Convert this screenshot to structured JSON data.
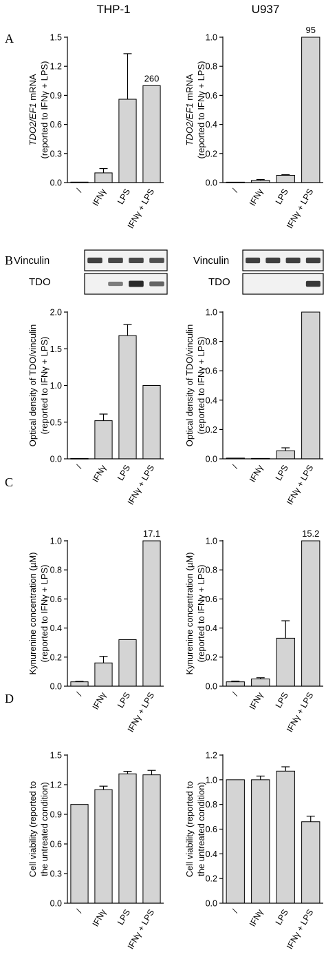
{
  "column_titles": [
    "THP-1",
    "U937"
  ],
  "panel_letters": [
    "A",
    "B",
    "C",
    "D"
  ],
  "blots": {
    "labels": [
      "Vinculin",
      "TDO"
    ],
    "thp1": {
      "vinculin_intensity": [
        0.85,
        0.8,
        0.8,
        0.75
      ],
      "tdo_intensity": [
        0.0,
        0.45,
        1.0,
        0.6
      ]
    },
    "u937": {
      "vinculin_intensity": [
        0.85,
        0.85,
        0.85,
        0.85
      ],
      "tdo_intensity": [
        0.0,
        0.0,
        0.0,
        0.9
      ]
    }
  },
  "colors": {
    "bar_fill": "#d4d4d4",
    "bar_stroke": "#000000",
    "blot_bg": "#f2f2f2",
    "blot_band": "#2a2a2a"
  },
  "chart_data": [
    {
      "id": "A-THP1",
      "type": "bar",
      "categories": [
        "/",
        "IFNγ",
        "LPS",
        "IFNγ + LPS"
      ],
      "values": [
        0.005,
        0.1,
        0.86,
        1.0
      ],
      "errors": [
        0.0,
        0.045,
        0.47,
        0.0
      ],
      "ylim": [
        0,
        1.5
      ],
      "yticks": [
        "0.0",
        "0.3",
        "0.6",
        "0.9",
        "1.2",
        "1.5"
      ],
      "ylabel_lines": [
        [
          "TDO2/EF1",
          " mRNA"
        ],
        [
          "(reported to IFNγ + LPS)"
        ]
      ],
      "data_labels": [
        null,
        null,
        null,
        "260"
      ]
    },
    {
      "id": "A-U937",
      "type": "bar",
      "categories": [
        "/",
        "IFNγ",
        "LPS",
        "IFNγ + LPS"
      ],
      "values": [
        0.003,
        0.015,
        0.05,
        1.0
      ],
      "errors": [
        0.0,
        0.006,
        0.004,
        0.0
      ],
      "ylim": [
        0,
        1.0
      ],
      "yticks": [
        "0.0",
        "0.2",
        "0.4",
        "0.6",
        "0.8",
        "1.0"
      ],
      "ylabel_lines": [
        [
          "TDO2/EF1",
          " mRNA"
        ],
        [
          "(reported to IFNγ + LPS)"
        ]
      ],
      "data_labels": [
        null,
        null,
        null,
        "95"
      ]
    },
    {
      "id": "B-THP1",
      "type": "bar",
      "categories": [
        "/",
        "IFNγ",
        "LPS",
        "IFNγ + LPS"
      ],
      "values": [
        0.005,
        0.52,
        1.68,
        1.0
      ],
      "errors": [
        0.0,
        0.09,
        0.15,
        0.0
      ],
      "ylim": [
        0,
        2.0
      ],
      "yticks": [
        "0.0",
        "0.5",
        "1.0",
        "1.5",
        "2.0"
      ],
      "ylabel_lines": [
        [
          "Optical density of TDO/vinculin"
        ],
        [
          "(reported to IFNγ + LPS)"
        ]
      ],
      "data_labels": [
        null,
        null,
        null,
        null
      ]
    },
    {
      "id": "B-U937",
      "type": "bar",
      "categories": [
        "/",
        "IFNγ",
        "LPS",
        "IFNγ + LPS"
      ],
      "values": [
        0.005,
        0.003,
        0.055,
        1.0
      ],
      "errors": [
        0.0,
        0.0,
        0.02,
        0.0
      ],
      "ylim": [
        0,
        1.0
      ],
      "yticks": [
        "0.0",
        "0.2",
        "0.4",
        "0.6",
        "0.8",
        "1.0"
      ],
      "ylabel_lines": [
        [
          "Optical density of TDO/vinculin"
        ],
        [
          "(reported to IFNγ + LPS)"
        ]
      ],
      "data_labels": [
        null,
        null,
        null,
        null
      ]
    },
    {
      "id": "C-THP1",
      "type": "bar",
      "categories": [
        "/",
        "IFNγ",
        "LPS",
        "IFNγ + LPS"
      ],
      "values": [
        0.03,
        0.16,
        0.32,
        1.0
      ],
      "errors": [
        0.003,
        0.045,
        0.0,
        0.0
      ],
      "ylim": [
        0,
        1.0
      ],
      "yticks": [
        "0.0",
        "0.2",
        "0.4",
        "0.6",
        "0.8",
        "1.0"
      ],
      "ylabel_lines": [
        [
          "Kynurenine concentration (µM)"
        ],
        [
          "(reported to IFNγ + LPS)"
        ]
      ],
      "data_labels": [
        null,
        null,
        null,
        "17.1"
      ]
    },
    {
      "id": "C-U937",
      "type": "bar",
      "categories": [
        "/",
        "IFNγ",
        "LPS",
        "IFNγ + LPS"
      ],
      "values": [
        0.03,
        0.05,
        0.33,
        1.0
      ],
      "errors": [
        0.005,
        0.008,
        0.12,
        0.0
      ],
      "ylim": [
        0,
        1.0
      ],
      "yticks": [
        "0.0",
        "0.2",
        "0.4",
        "0.6",
        "0.8",
        "1.0"
      ],
      "ylabel_lines": [
        [
          "Kynurenine concentration (µM)"
        ],
        [
          "(reported to IFNγ + LPS)"
        ]
      ],
      "data_labels": [
        null,
        null,
        null,
        "15.2"
      ]
    },
    {
      "id": "D-THP1",
      "type": "bar",
      "categories": [
        "/",
        "IFNγ",
        "LPS",
        "IFNγ + LPS"
      ],
      "values": [
        1.0,
        1.15,
        1.31,
        1.3
      ],
      "errors": [
        0.0,
        0.035,
        0.025,
        0.045
      ],
      "ylim": [
        0,
        1.5
      ],
      "yticks": [
        "0.0",
        "0.3",
        "0.6",
        "0.9",
        "1.2",
        "1.5"
      ],
      "ylabel_lines": [
        [
          "Cell viability (reported to"
        ],
        [
          "the untreated condition)"
        ]
      ],
      "data_labels": [
        null,
        null,
        null,
        null
      ]
    },
    {
      "id": "D-U937",
      "type": "bar",
      "categories": [
        "/",
        "IFNγ",
        "LPS",
        "IFNγ + LPS"
      ],
      "values": [
        1.0,
        1.0,
        1.07,
        0.66
      ],
      "errors": [
        0.0,
        0.03,
        0.035,
        0.045
      ],
      "ylim": [
        0,
        1.2
      ],
      "yticks": [
        "0.0",
        "0.2",
        "0.4",
        "0.6",
        "0.8",
        "1.0",
        "1.2"
      ],
      "ylabel_lines": [
        [
          "Cell viability (reported to"
        ],
        [
          "the untreated condition)"
        ]
      ],
      "data_labels": [
        null,
        null,
        null,
        null
      ]
    }
  ]
}
